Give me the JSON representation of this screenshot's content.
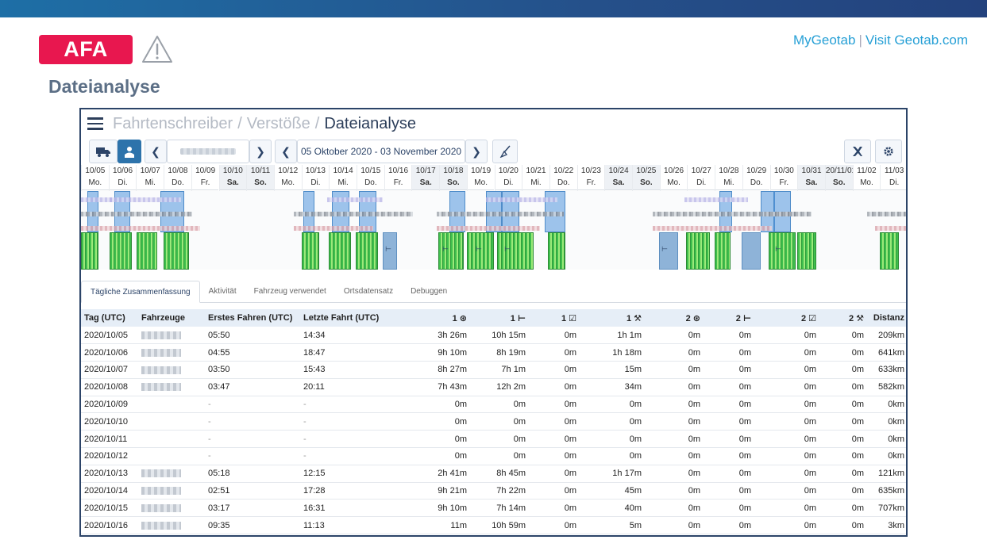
{
  "brand": {
    "badge": "AFA",
    "links": {
      "mygeotab": "MyGeotab",
      "separator": "|",
      "visit": "Visit Geotab.com"
    }
  },
  "page": {
    "title": "Dateianalyse"
  },
  "breadcrumb": {
    "level1": "Fahrtenschreiber",
    "sep": "/",
    "level2": "Verstöße",
    "current": "Dateianalyse"
  },
  "toolbar": {
    "date_range": "05 Oktober 2020 - 03 November 2020"
  },
  "timeline": {
    "days": [
      {
        "date": "10/05",
        "wd": "Mo."
      },
      {
        "date": "10/06",
        "wd": "Di."
      },
      {
        "date": "10/07",
        "wd": "Mi."
      },
      {
        "date": "10/08",
        "wd": "Do."
      },
      {
        "date": "10/09",
        "wd": "Fr."
      },
      {
        "date": "10/10",
        "wd": "Sa."
      },
      {
        "date": "10/11",
        "wd": "So."
      },
      {
        "date": "10/12",
        "wd": "Mo."
      },
      {
        "date": "10/13",
        "wd": "Di."
      },
      {
        "date": "10/14",
        "wd": "Mi."
      },
      {
        "date": "10/15",
        "wd": "Do."
      },
      {
        "date": "10/16",
        "wd": "Fr."
      },
      {
        "date": "10/17",
        "wd": "Sa."
      },
      {
        "date": "10/18",
        "wd": "So."
      },
      {
        "date": "10/19",
        "wd": "Mo."
      },
      {
        "date": "10/20",
        "wd": "Di."
      },
      {
        "date": "10/21",
        "wd": "Mi."
      },
      {
        "date": "10/22",
        "wd": "Do."
      },
      {
        "date": "10/23",
        "wd": "Fr."
      },
      {
        "date": "10/24",
        "wd": "Sa."
      },
      {
        "date": "10/25",
        "wd": "So."
      },
      {
        "date": "10/26",
        "wd": "Mo."
      },
      {
        "date": "10/27",
        "wd": "Di."
      },
      {
        "date": "10/28",
        "wd": "Mi."
      },
      {
        "date": "10/29",
        "wd": "Do."
      },
      {
        "date": "10/30",
        "wd": "Fr."
      },
      {
        "date": "10/31",
        "wd": "Sa."
      },
      {
        "date": "20/11/01",
        "wd": "So."
      },
      {
        "date": "11/02",
        "wd": "Mo."
      },
      {
        "date": "11/03",
        "wd": "Di."
      }
    ]
  },
  "tabs": [
    {
      "label": "Tägliche Zusammenfassung"
    },
    {
      "label": "Aktivität"
    },
    {
      "label": "Fahrzeug verwendet"
    },
    {
      "label": "Ortsdatensatz"
    },
    {
      "label": "Debuggen"
    }
  ],
  "table": {
    "headers": {
      "day": "Tag (UTC)",
      "vehicles": "Fahrzeuge",
      "first": "Erstes Fahren (UTC)",
      "last": "Letzte Fahrt (UTC)",
      "d1_drive": "1 ⊛",
      "d1_rest": "1 ⊢",
      "d1_avail": "1 ☑",
      "d1_work": "1 ⚒",
      "d2_drive": "2 ⊛",
      "d2_rest": "2 ⊢",
      "d2_avail": "2 ☑",
      "d2_work": "2 ⚒",
      "distance": "Distanz"
    },
    "rows": [
      [
        "2020/10/05",
        "05:50",
        "14:34",
        "3h 26m",
        "10h 15m",
        "0m",
        "1h 1m",
        "0m",
        "0m",
        "0m",
        "0m",
        "209km"
      ],
      [
        "2020/10/06",
        "04:55",
        "18:47",
        "9h 10m",
        "8h 19m",
        "0m",
        "1h 18m",
        "0m",
        "0m",
        "0m",
        "0m",
        "641km"
      ],
      [
        "2020/10/07",
        "03:50",
        "15:43",
        "8h 27m",
        "7h 1m",
        "0m",
        "15m",
        "0m",
        "0m",
        "0m",
        "0m",
        "633km"
      ],
      [
        "2020/10/08",
        "03:47",
        "20:11",
        "7h 43m",
        "12h 2m",
        "0m",
        "34m",
        "0m",
        "0m",
        "0m",
        "0m",
        "582km"
      ],
      [
        "2020/10/09",
        "-",
        "-",
        "0m",
        "0m",
        "0m",
        "0m",
        "0m",
        "0m",
        "0m",
        "0m",
        "0km"
      ],
      [
        "2020/10/10",
        "-",
        "-",
        "0m",
        "0m",
        "0m",
        "0m",
        "0m",
        "0m",
        "0m",
        "0m",
        "0km"
      ],
      [
        "2020/10/11",
        "-",
        "-",
        "0m",
        "0m",
        "0m",
        "0m",
        "0m",
        "0m",
        "0m",
        "0m",
        "0km"
      ],
      [
        "2020/10/12",
        "-",
        "-",
        "0m",
        "0m",
        "0m",
        "0m",
        "0m",
        "0m",
        "0m",
        "0m",
        "0km"
      ],
      [
        "2020/10/13",
        "05:18",
        "12:15",
        "2h 41m",
        "8h 45m",
        "0m",
        "1h 17m",
        "0m",
        "0m",
        "0m",
        "0m",
        "121km"
      ],
      [
        "2020/10/14",
        "02:51",
        "17:28",
        "9h 21m",
        "7h 22m",
        "0m",
        "45m",
        "0m",
        "0m",
        "0m",
        "0m",
        "635km"
      ],
      [
        "2020/10/15",
        "03:17",
        "16:31",
        "9h 10m",
        "7h 14m",
        "0m",
        "40m",
        "0m",
        "0m",
        "0m",
        "0m",
        "707km"
      ],
      [
        "2020/10/16",
        "09:35",
        "11:13",
        "11m",
        "10h 59m",
        "0m",
        "5m",
        "0m",
        "0m",
        "0m",
        "0m",
        "3km"
      ]
    ],
    "vehicle_visible": [
      true,
      true,
      true,
      true,
      false,
      false,
      false,
      false,
      true,
      true,
      true,
      true
    ]
  },
  "colors": {
    "accent": "#e8174f",
    "link": "#27a0d6",
    "navy": "#2c4468",
    "button_active": "#2d73ab"
  }
}
